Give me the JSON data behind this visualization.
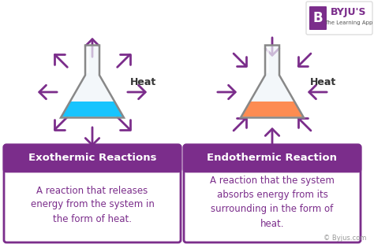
{
  "bg_color": "#ffffff",
  "purple": "#7B2D8B",
  "arrow_color": "#7B2D8B",
  "flask1_liquid": "#00BFFF",
  "flask2_liquid": "#FF8040",
  "flask_glass_edge": "#888888",
  "flask_glass_fill": "#e8f4f8",
  "heat_color": "#333333",
  "title1": "Exothermic Reactions",
  "title2": "Endothermic Reaction",
  "desc1_color": "#7B2D8B",
  "desc1": "A reaction that releases\nenergy from the system in\nthe form of heat.",
  "desc2": "A reaction that the system\nabsorbs energy from its\nsurrounding in the form of\nheat.",
  "copyright": "© Byjus.com",
  "byju_color": "#7B2D8B",
  "byju_bg": "#7B2D8B"
}
